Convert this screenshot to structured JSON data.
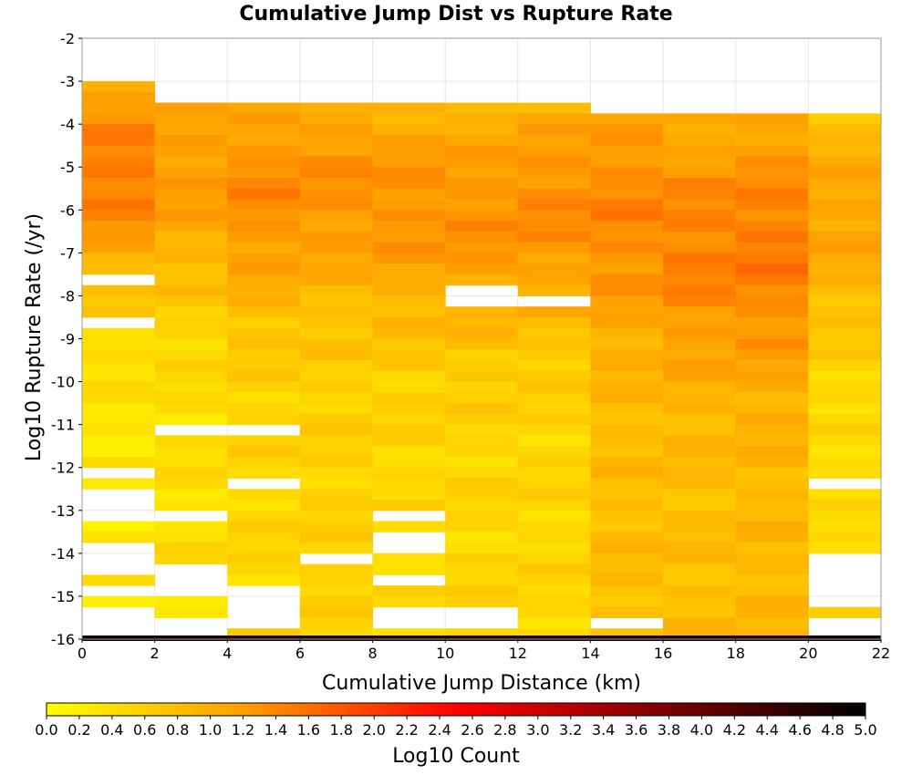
{
  "chart_data": {
    "type": "heatmap",
    "title": "Cumulative Jump Dist vs Rupture Rate",
    "xlabel": "Cumulative Jump Distance (km)",
    "ylabel": "Log10 Rupture Rate (/yr)",
    "xlim": [
      0,
      22
    ],
    "ylim": [
      -16,
      -2
    ],
    "x_ticks": [
      "0",
      "2",
      "4",
      "6",
      "8",
      "10",
      "12",
      "14",
      "16",
      "18",
      "20",
      "22"
    ],
    "y_ticks": [
      "-2",
      "-3",
      "-4",
      "-5",
      "-6",
      "-7",
      "-8",
      "-9",
      "-10",
      "-11",
      "-12",
      "-13",
      "-14",
      "-15",
      "-16"
    ],
    "x_bin_width": 2,
    "y_bin_height": 0.25,
    "grid": true,
    "colorbar": {
      "label": "Log10 Count",
      "range": [
        0,
        5
      ],
      "ticks": [
        "0.0",
        "0.2",
        "0.4",
        "0.6",
        "0.8",
        "1.0",
        "1.2",
        "1.4",
        "1.6",
        "1.8",
        "2.0",
        "2.2",
        "2.4",
        "2.6",
        "2.8",
        "3.0",
        "3.2",
        "3.4",
        "3.6",
        "3.8",
        "4.0",
        "4.2",
        "4.4",
        "4.6",
        "4.8",
        "5.0"
      ],
      "colors": [
        "#ffff00",
        "#ff9900",
        "#ff0000",
        "#800000",
        "#000000"
      ]
    },
    "columns": [
      {
        "x_start": 0,
        "y_top": -3.0,
        "y_bottom": -15.75,
        "base": 0.3,
        "peak": 1.5,
        "peak_y": -5.0,
        "blanks": [
          -7.5,
          -8.5,
          -12.0,
          -12.5,
          -12.75,
          -13.0,
          -13.75,
          -14.0,
          -14.25,
          -14.75,
          -15.25,
          -15.5,
          -15.75
        ]
      },
      {
        "x_start": 2,
        "y_top": -3.5,
        "y_bottom": -15.25,
        "base": 0.4,
        "peak": 1.2,
        "peak_y": -5.0,
        "blanks": [
          -11.0,
          -13.0,
          -14.25,
          -14.5,
          -14.75
        ]
      },
      {
        "x_start": 4,
        "y_top": -3.5,
        "y_bottom": -15.75,
        "base": 0.5,
        "peak": 1.35,
        "peak_y": -5.5,
        "blanks": [
          -11.0,
          -12.25,
          -14.75,
          -15.0,
          -15.25,
          -15.5
        ]
      },
      {
        "x_start": 6,
        "y_top": -3.5,
        "y_bottom": -15.75,
        "base": 0.55,
        "peak": 1.3,
        "peak_y": -5.25,
        "blanks": [
          -14.0
        ]
      },
      {
        "x_start": 8,
        "y_top": -3.5,
        "y_bottom": -15.75,
        "base": 0.5,
        "peak": 1.3,
        "peak_y": -5.75,
        "blanks": [
          -13.0,
          -13.5,
          -13.75,
          -14.5,
          -15.25,
          -15.5
        ]
      },
      {
        "x_start": 10,
        "y_top": -3.5,
        "y_bottom": -15.75,
        "base": 0.5,
        "peak": 1.3,
        "peak_y": -6.0,
        "blanks": [
          -7.75,
          -8.0,
          -15.25,
          -15.5
        ]
      },
      {
        "x_start": 12,
        "y_top": -3.5,
        "y_bottom": -15.75,
        "base": 0.5,
        "peak": 1.35,
        "peak_y": -5.75,
        "blanks": [
          -8.0
        ]
      },
      {
        "x_start": 14,
        "y_top": -3.75,
        "y_bottom": -15.75,
        "base": 0.8,
        "peak": 1.4,
        "peak_y": -6.0,
        "blanks": [
          -15.5
        ]
      },
      {
        "x_start": 16,
        "y_top": -3.75,
        "y_bottom": -15.75,
        "base": 0.8,
        "peak": 1.45,
        "peak_y": -6.75,
        "blanks": []
      },
      {
        "x_start": 18,
        "y_top": -3.75,
        "y_bottom": -15.75,
        "base": 0.85,
        "peak": 1.5,
        "peak_y": -6.75,
        "blanks": []
      },
      {
        "x_start": 20,
        "y_top": -3.75,
        "y_bottom": -15.75,
        "base": 0.4,
        "peak": 1.1,
        "peak_y": -6.0,
        "blanks": [
          -12.25,
          -14.0,
          -14.25,
          -14.5,
          -14.75,
          -15.0,
          -15.5,
          -15.75
        ]
      }
    ],
    "bottom_row": {
      "y": -16.0,
      "value": 4.8
    }
  }
}
